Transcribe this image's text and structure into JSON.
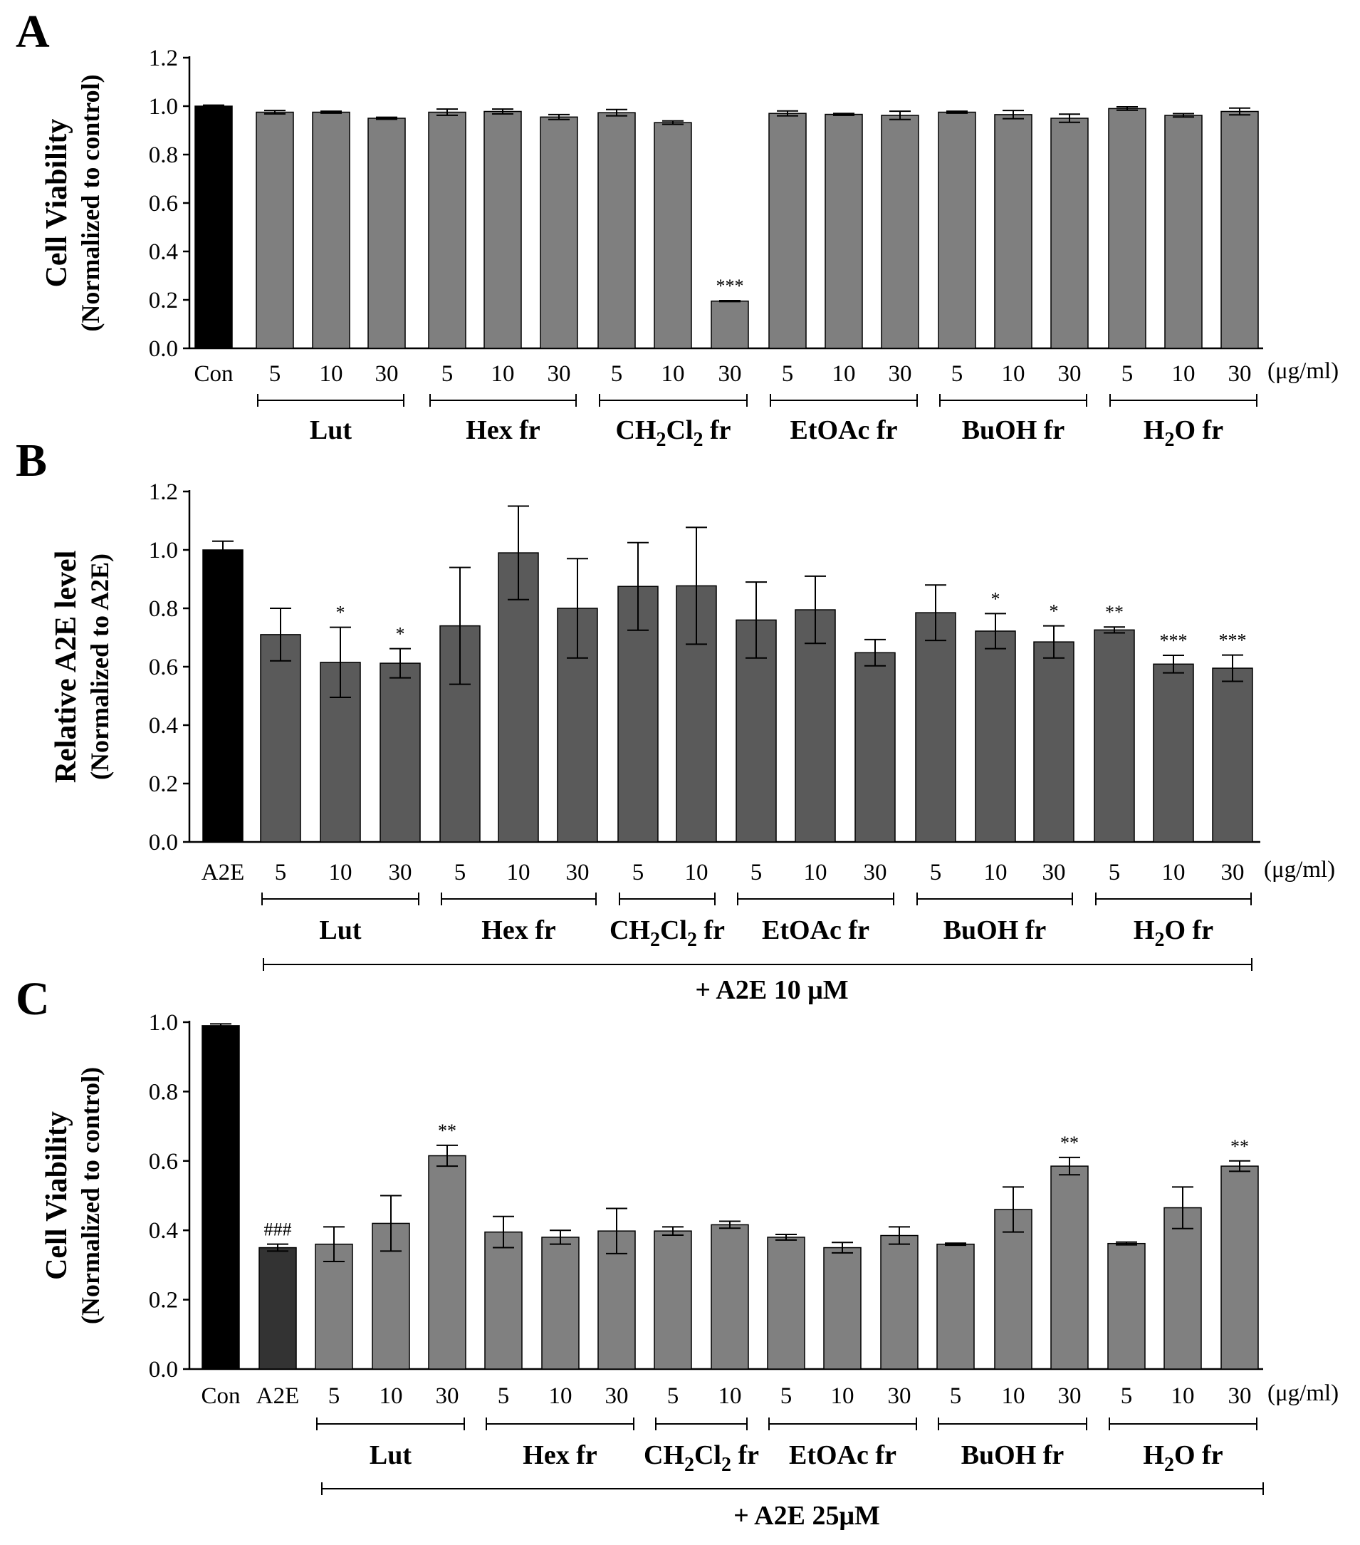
{
  "chart_data": [
    {
      "type": "bar",
      "panel": "A",
      "ylabel_line1": "Cell Viability",
      "ylabel_line2": "(Normalized to control)",
      "ylim": [
        0,
        1.2
      ],
      "yticks": [
        "0.0",
        "0.2",
        "0.4",
        "0.6",
        "0.8",
        "1.0",
        "1.2"
      ],
      "unit": "(μg/ml)",
      "categories": [
        "Con",
        "5",
        "10",
        "30",
        "5",
        "10",
        "30",
        "5",
        "10",
        "30",
        "5",
        "10",
        "30",
        "5",
        "10",
        "30",
        "5",
        "10",
        "30"
      ],
      "values": [
        1.0,
        0.975,
        0.975,
        0.95,
        0.975,
        0.978,
        0.955,
        0.973,
        0.932,
        0.195,
        0.97,
        0.966,
        0.962,
        0.975,
        0.965,
        0.95,
        0.99,
        0.962,
        0.978
      ],
      "errors": [
        0.004,
        0.007,
        0.004,
        0.004,
        0.013,
        0.01,
        0.01,
        0.013,
        0.007,
        0.002,
        0.01,
        0.004,
        0.017,
        0.004,
        0.017,
        0.017,
        0.007,
        0.007,
        0.014
      ],
      "colors": [
        "#000000",
        "#7f7f7f",
        "#7f7f7f",
        "#7f7f7f",
        "#7f7f7f",
        "#7f7f7f",
        "#7f7f7f",
        "#7f7f7f",
        "#7f7f7f",
        "#7f7f7f",
        "#7f7f7f",
        "#7f7f7f",
        "#7f7f7f",
        "#7f7f7f",
        "#7f7f7f",
        "#7f7f7f",
        "#7f7f7f",
        "#7f7f7f",
        "#7f7f7f"
      ],
      "significance": [
        "",
        "",
        "",
        "",
        "",
        "",
        "",
        "",
        "",
        "***",
        "",
        "",
        "",
        "",
        "",
        "",
        "",
        "",
        ""
      ],
      "groups": [
        {
          "label": "Lut",
          "from": 1,
          "to": 3
        },
        {
          "label": "Hex fr",
          "from": 4,
          "to": 6
        },
        {
          "label": "CH2Cl2 fr",
          "from": 7,
          "to": 9,
          "formula": "CH2Cl2"
        },
        {
          "label": "EtOAc fr",
          "from": 10,
          "to": 12
        },
        {
          "label": "BuOH fr",
          "from": 13,
          "to": 15
        },
        {
          "label": "H2O fr",
          "from": 16,
          "to": 18,
          "formula": "H2O"
        }
      ],
      "treatment_label": ""
    },
    {
      "type": "bar",
      "panel": "B",
      "ylabel_line1": "Relative A2E level",
      "ylabel_line2": "(Normalized to A2E)",
      "ylim": [
        0,
        1.2
      ],
      "yticks": [
        "0.0",
        "0.2",
        "0.4",
        "0.6",
        "0.8",
        "1.0",
        "1.2"
      ],
      "unit": "(μg/ml)",
      "categories": [
        "A2E",
        "5",
        "10",
        "30",
        "5",
        "10",
        "30",
        "5",
        "10",
        "5",
        "10",
        "30",
        "5",
        "10",
        "30",
        "5",
        "10",
        "30"
      ],
      "values": [
        1.0,
        0.71,
        0.615,
        0.612,
        0.74,
        0.99,
        0.8,
        0.875,
        0.877,
        0.76,
        0.795,
        0.648,
        0.785,
        0.722,
        0.685,
        0.726,
        0.609,
        0.595
      ],
      "errors": [
        0.03,
        0.09,
        0.12,
        0.05,
        0.2,
        0.16,
        0.17,
        0.15,
        0.2,
        0.13,
        0.115,
        0.045,
        0.095,
        0.06,
        0.055,
        0.01,
        0.03,
        0.045
      ],
      "colors": [
        "#000000",
        "#5a5a5a",
        "#5a5a5a",
        "#5a5a5a",
        "#5a5a5a",
        "#5a5a5a",
        "#5a5a5a",
        "#5a5a5a",
        "#5a5a5a",
        "#5a5a5a",
        "#5a5a5a",
        "#5a5a5a",
        "#5a5a5a",
        "#5a5a5a",
        "#5a5a5a",
        "#5a5a5a",
        "#5a5a5a",
        "#5a5a5a"
      ],
      "significance": [
        "",
        "",
        "*",
        "*",
        "",
        "",
        "",
        "",
        "",
        "",
        "",
        "",
        "",
        "*",
        "*",
        "**",
        "***",
        "***"
      ],
      "groups": [
        {
          "label": "Lut",
          "from": 1,
          "to": 3
        },
        {
          "label": "Hex fr",
          "from": 4,
          "to": 6
        },
        {
          "label": "CH2Cl2 fr",
          "from": 7,
          "to": 8,
          "formula": "CH2Cl2"
        },
        {
          "label": "EtOAc fr",
          "from": 9,
          "to": 11
        },
        {
          "label": "BuOH fr",
          "from": 12,
          "to": 14
        },
        {
          "label": "H2O fr",
          "from": 15,
          "to": 17,
          "formula": "H2O"
        }
      ],
      "treatment_label": "+ A2E 10 μM"
    },
    {
      "type": "bar",
      "panel": "C",
      "ylabel_line1": "Cell Viability",
      "ylabel_line2": "(Normalized to control)",
      "ylim": [
        0,
        1.0
      ],
      "yticks": [
        "0.0",
        "0.2",
        "0.4",
        "0.6",
        "0.8",
        "1.0"
      ],
      "unit": "(μg/ml)",
      "categories": [
        "Con",
        "A2E",
        "5",
        "10",
        "30",
        "5",
        "10",
        "30",
        "5",
        "10",
        "5",
        "10",
        "30",
        "5",
        "10",
        "30",
        "5",
        "10",
        "30"
      ],
      "values": [
        0.99,
        0.35,
        0.36,
        0.42,
        0.615,
        0.395,
        0.38,
        0.398,
        0.398,
        0.416,
        0.38,
        0.35,
        0.385,
        0.36,
        0.46,
        0.585,
        0.362,
        0.465,
        0.585
      ],
      "errors": [
        0.005,
        0.01,
        0.05,
        0.08,
        0.03,
        0.045,
        0.02,
        0.065,
        0.012,
        0.01,
        0.008,
        0.015,
        0.025,
        0.003,
        0.065,
        0.025,
        0.004,
        0.06,
        0.015
      ],
      "colors": [
        "#000000",
        "#333333",
        "#808080",
        "#808080",
        "#808080",
        "#808080",
        "#808080",
        "#808080",
        "#808080",
        "#808080",
        "#808080",
        "#808080",
        "#808080",
        "#808080",
        "#808080",
        "#808080",
        "#808080",
        "#808080",
        "#808080"
      ],
      "significance": [
        "",
        "###",
        "",
        "",
        "**",
        "",
        "",
        "",
        "",
        "",
        "",
        "",
        "",
        "",
        "",
        "**",
        "",
        "",
        "**"
      ],
      "groups": [
        {
          "label": "Lut",
          "from": 2,
          "to": 4
        },
        {
          "label": "Hex fr",
          "from": 5,
          "to": 7
        },
        {
          "label": "CH2Cl2 fr",
          "from": 8,
          "to": 9,
          "formula": "CH2Cl2"
        },
        {
          "label": "EtOAc fr",
          "from": 10,
          "to": 12
        },
        {
          "label": "BuOH fr",
          "from": 13,
          "to": 15
        },
        {
          "label": "H2O fr",
          "from": 16,
          "to": 18,
          "formula": "H2O"
        }
      ],
      "treatment_label": "+ A2E 25μM"
    }
  ]
}
